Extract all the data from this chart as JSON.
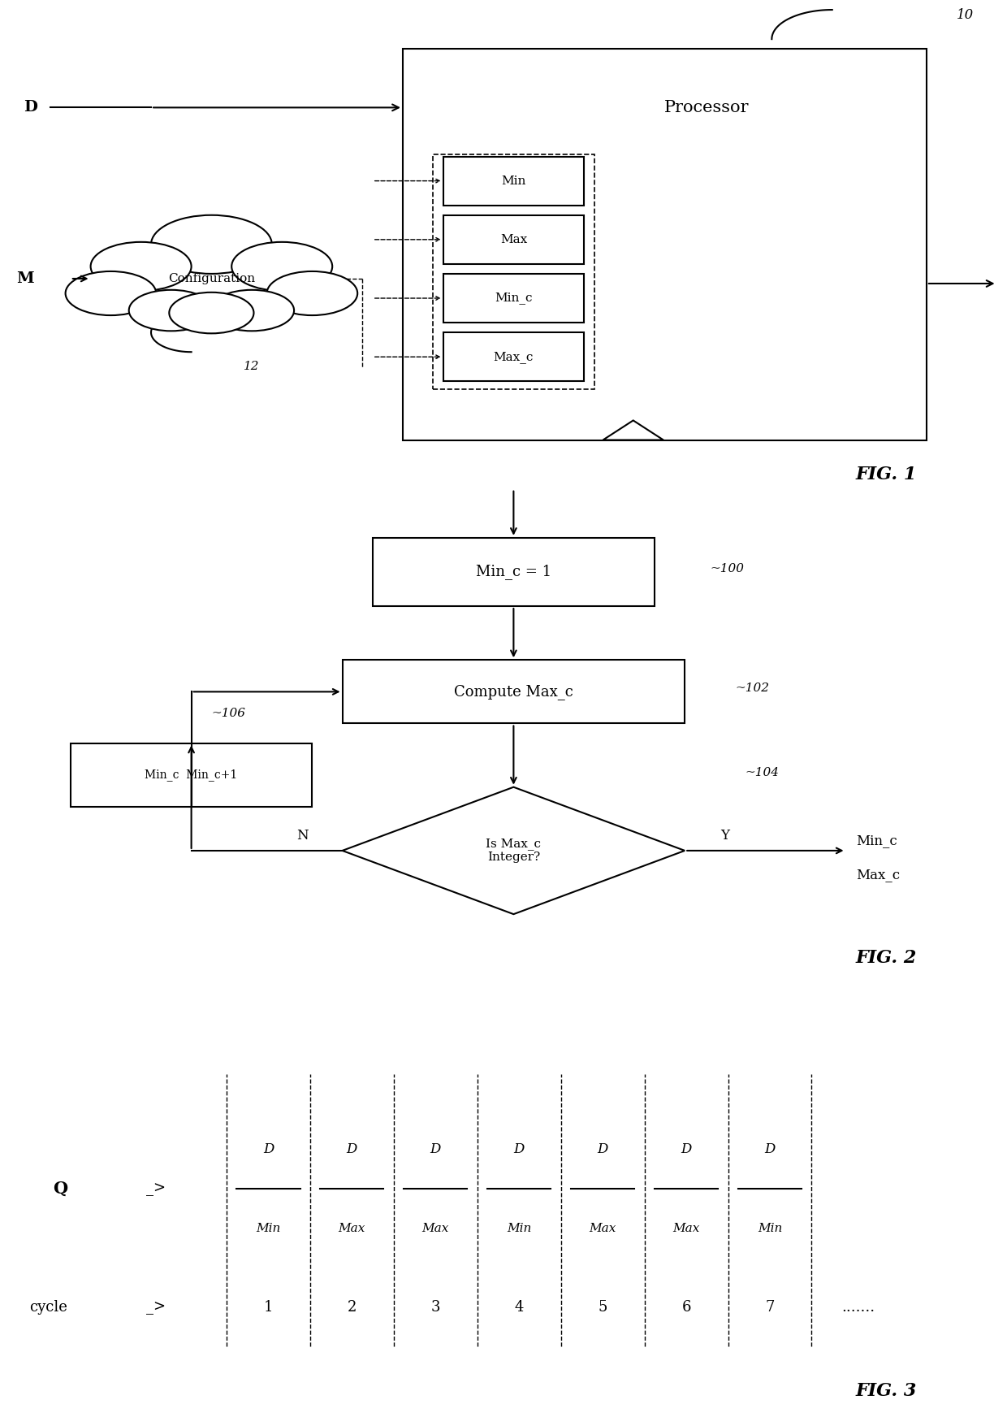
{
  "fig1": {
    "processor_label": "Processor",
    "label_10": "10",
    "label_12": "12",
    "d_label": "D",
    "m_label": "M",
    "config_label": "Configuration",
    "register_labels": [
      "Min",
      "Max",
      "Min_c",
      "Max_c"
    ],
    "fig_label": "FIG. 1"
  },
  "fig2": {
    "fig_label": "FIG. 2",
    "label_100": "~100",
    "label_102": "~102",
    "label_104": "~104",
    "label_106": "~106",
    "box1_label": "Min_c = 1",
    "box2_label": "Compute Max_c",
    "diamond_label": "Is Max_c\nInteger?",
    "left_box_label": "Min_c  Min_c+1",
    "n_label": "N",
    "y_label": "Y",
    "out_label_line1": "Min_c",
    "out_label_line2": "Max_c"
  },
  "fig3": {
    "fig_label": "FIG. 3",
    "q_label": "Q",
    "cycle_label": "cycle",
    "fractions": [
      [
        "D",
        "Min"
      ],
      [
        "D",
        "Max"
      ],
      [
        "D",
        "Max"
      ],
      [
        "D",
        "Min"
      ],
      [
        "D",
        "Max"
      ],
      [
        "D",
        "Max"
      ],
      [
        "D",
        "Min"
      ]
    ],
    "cycles": [
      "1",
      "2",
      "3",
      "4",
      "5",
      "6",
      "7"
    ],
    "dots": "......."
  }
}
